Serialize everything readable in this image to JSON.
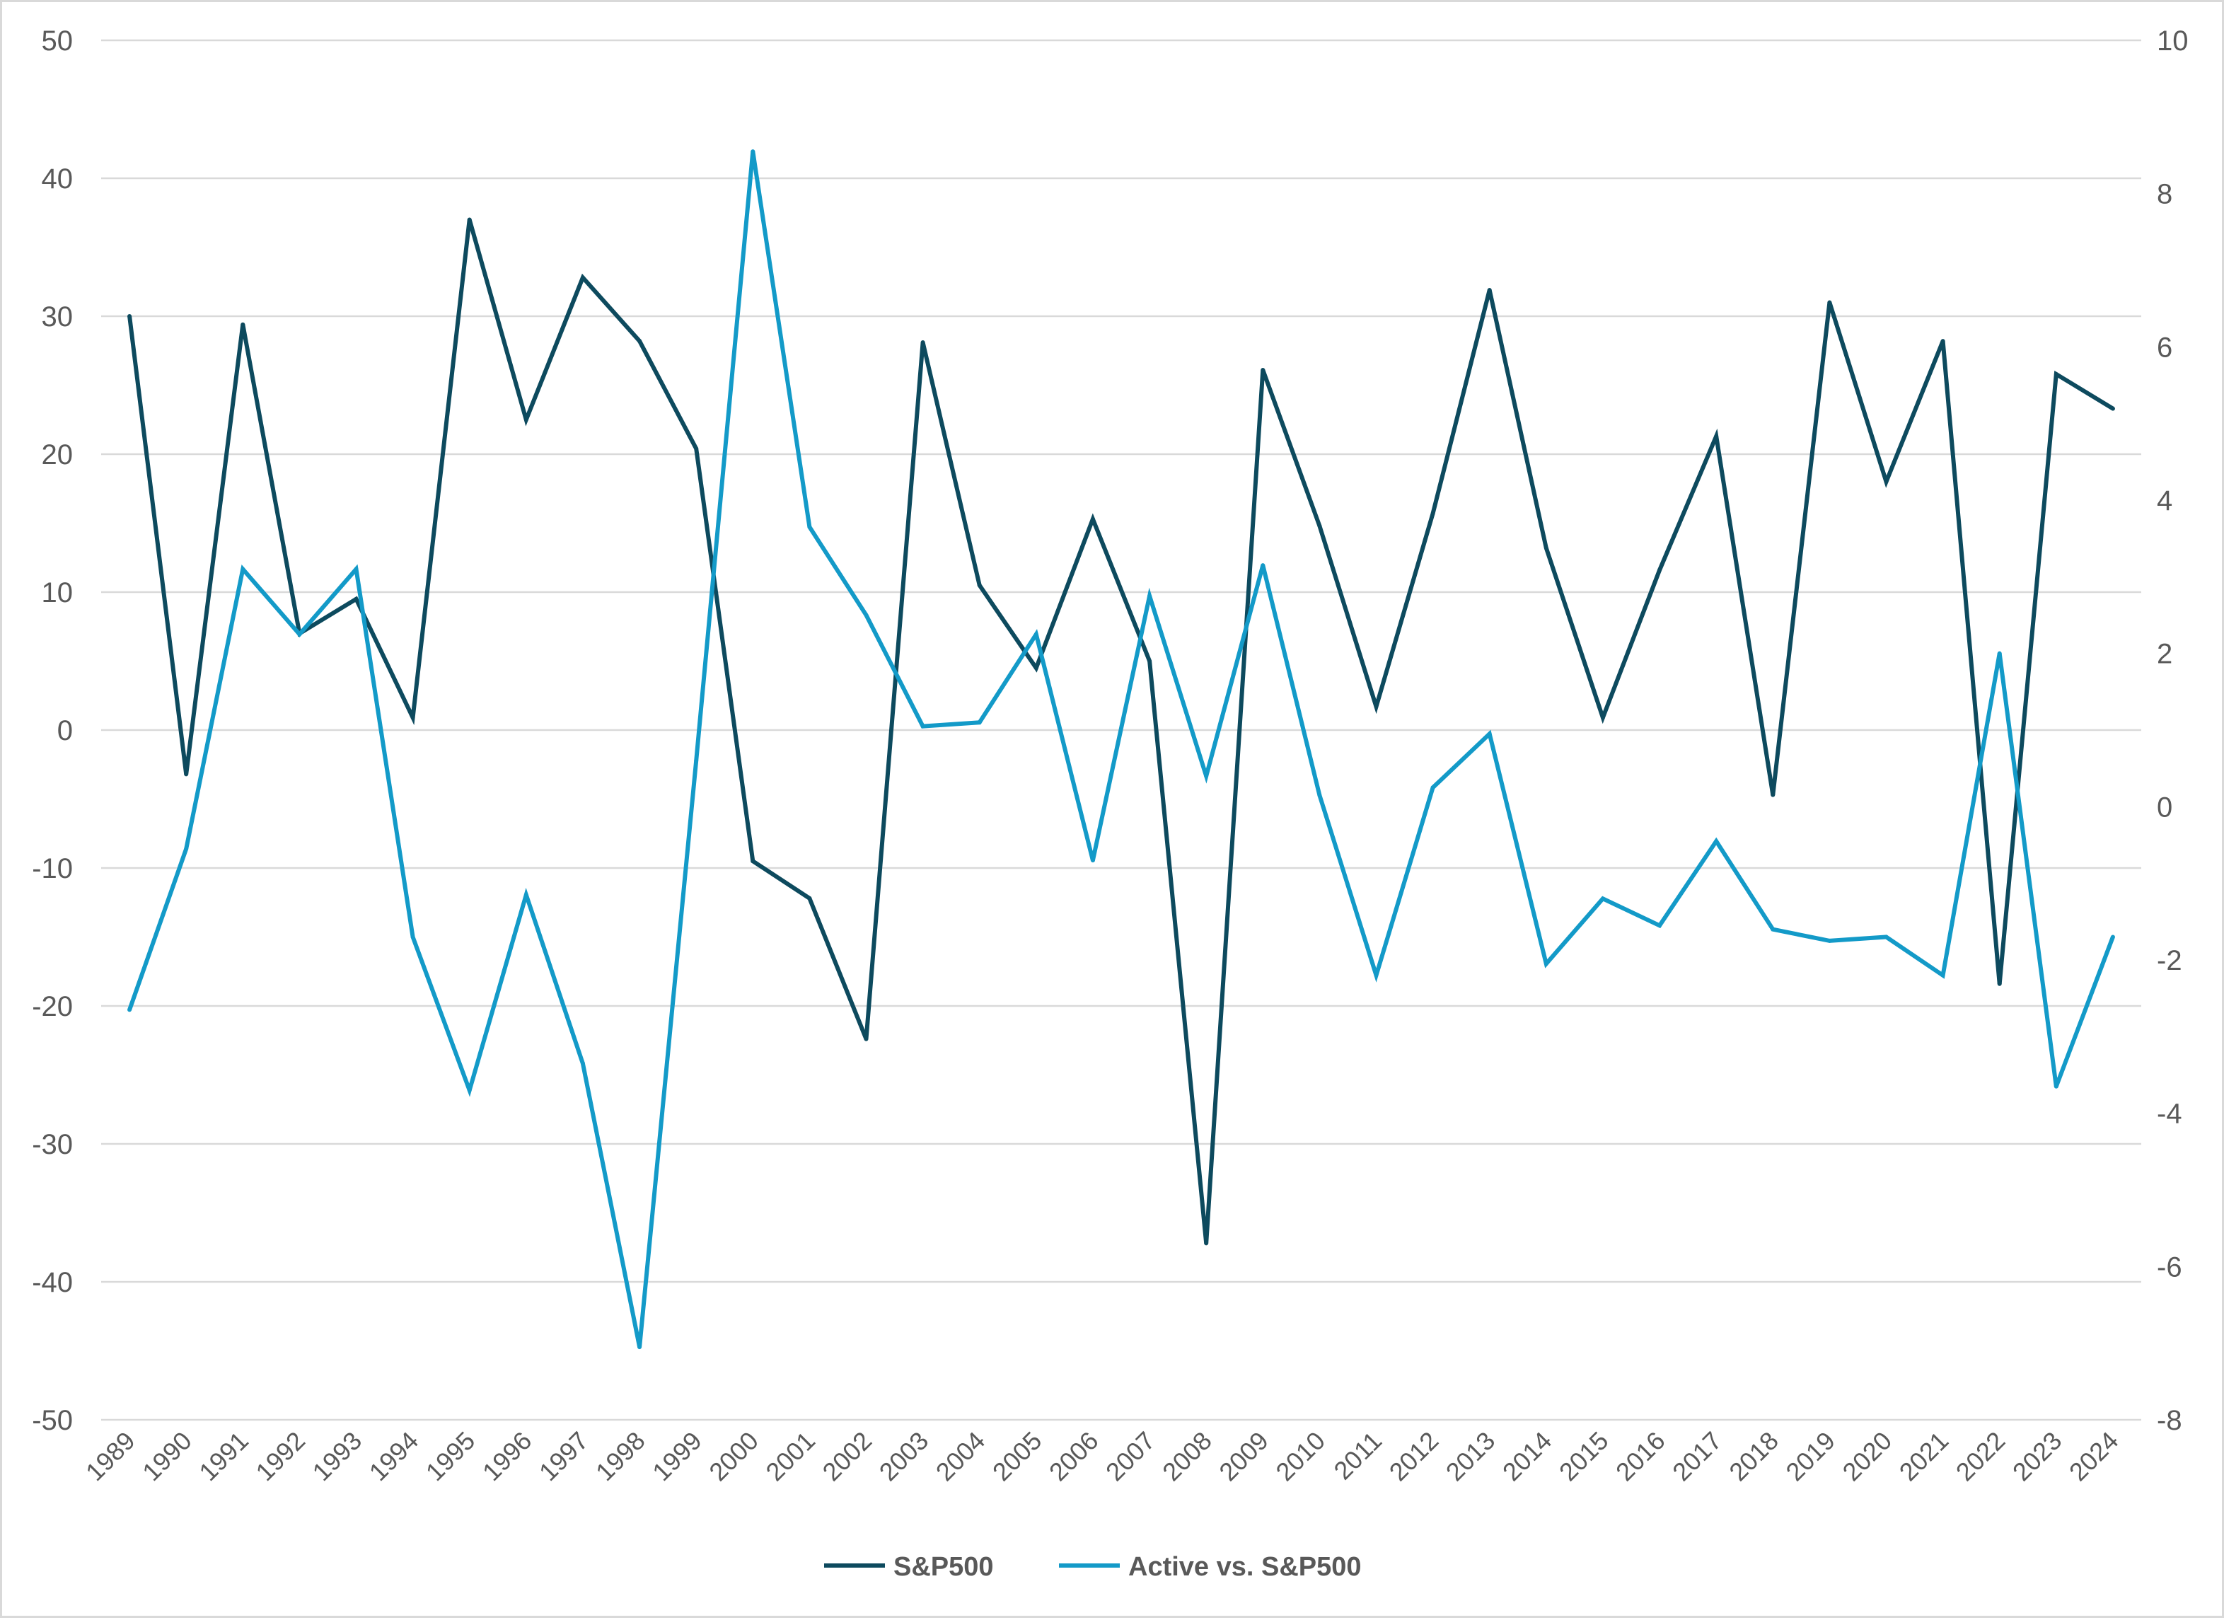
{
  "chart_data": {
    "type": "line",
    "title": "",
    "xlabel": "",
    "ylabel": "",
    "y2label": "",
    "x": [
      "1989",
      "1990",
      "1991",
      "1992",
      "1993",
      "1994",
      "1995",
      "1996",
      "1997",
      "1998",
      "1999",
      "2000",
      "2001",
      "2002",
      "2003",
      "2004",
      "2005",
      "2006",
      "2007",
      "2008",
      "2009",
      "2010",
      "2011",
      "2012",
      "2013",
      "2014",
      "2015",
      "2016",
      "2017",
      "2018",
      "2019",
      "2020",
      "2021",
      "2022",
      "2023",
      "2024"
    ],
    "ylim": [
      -50,
      50
    ],
    "yticks": [
      50,
      40,
      30,
      20,
      10,
      0,
      -10,
      -20,
      -30,
      -40,
      -50
    ],
    "y2lim": [
      -8,
      10
    ],
    "y2ticks": [
      10,
      8,
      6,
      4,
      2,
      0,
      -2,
      -4,
      -6,
      -8
    ],
    "grid": true,
    "legend_position": "bottom-center",
    "series": [
      {
        "name": "S&P500",
        "axis": "left",
        "color": "#0d4a5e",
        "values": [
          30.0,
          -3.2,
          29.4,
          7.0,
          9.5,
          0.9,
          37.0,
          22.5,
          32.8,
          28.2,
          20.4,
          -9.5,
          -12.2,
          -22.4,
          28.1,
          10.5,
          4.5,
          15.3,
          5.0,
          -37.2,
          26.1,
          14.8,
          1.7,
          15.7,
          31.9,
          13.2,
          0.9,
          11.6,
          21.3,
          -4.7,
          31.0,
          18.0,
          28.2,
          -18.4,
          25.8,
          23.3
        ]
      },
      {
        "name": "Active vs. S&P500",
        "axis": "right",
        "color": "#139ac8",
        "values": [
          -2.65,
          -0.55,
          3.1,
          2.25,
          3.1,
          -1.7,
          -3.7,
          -1.15,
          -3.35,
          -7.05,
          0.6,
          8.55,
          3.65,
          2.5,
          1.05,
          1.1,
          2.25,
          -0.7,
          2.75,
          0.4,
          3.15,
          0.15,
          -2.2,
          0.25,
          0.95,
          -2.05,
          -1.2,
          -1.55,
          -0.45,
          -1.6,
          -1.75,
          -1.7,
          -2.2,
          2.0,
          -3.65,
          -1.7
        ]
      }
    ]
  }
}
